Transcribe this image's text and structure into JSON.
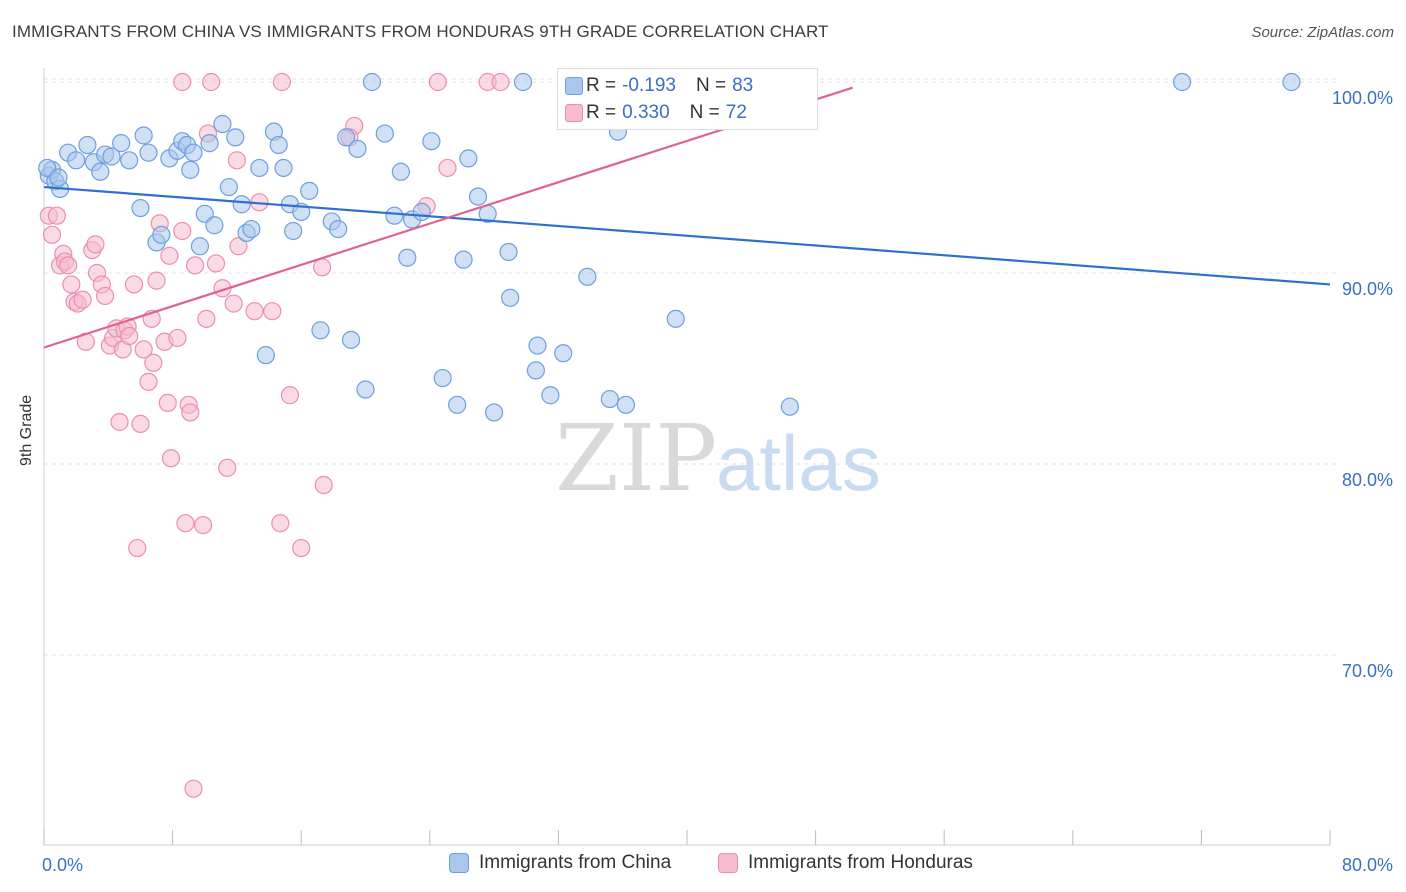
{
  "title": "IMMIGRANTS FROM CHINA VS IMMIGRANTS FROM HONDURAS 9TH GRADE CORRELATION CHART",
  "source": "Source: ZipAtlas.com",
  "watermark": {
    "zip": "ZIP",
    "atlas": "atlas"
  },
  "colors": {
    "china_fill": "#a9c6ec",
    "china_stroke": "#6f9fde",
    "china_line": "#2f6fcf",
    "honduras_fill": "#f6bccd",
    "honduras_stroke": "#ec8fab",
    "honduras_line": "#e0628e",
    "axis_text": "#3a6fc4",
    "grid": "#e3e3e3"
  },
  "stats": {
    "china": {
      "r_label": "R =",
      "r_value": "-0.193",
      "n_label": "N =",
      "n_value": "83"
    },
    "honduras": {
      "r_label": "R =",
      "r_value": "0.330",
      "n_label": "N =",
      "n_value": "72"
    }
  },
  "legend": {
    "china": "Immigrants from China",
    "honduras": "Immigrants from Honduras"
  },
  "chart_data": {
    "type": "scatter",
    "title": "IMMIGRANTS FROM CHINA VS IMMIGRANTS FROM HONDURAS 9TH GRADE CORRELATION CHART",
    "xlabel": "",
    "ylabel": "9th Grade",
    "xlim": [
      0,
      80
    ],
    "ylim": [
      62,
      101.5
    ],
    "x_tick_labels": [
      "0.0%",
      "80.0%"
    ],
    "y_ticks": [
      70,
      80,
      90,
      100
    ],
    "y_tick_labels": [
      "70.0%",
      "80.0%",
      "90.0%",
      "100.0%"
    ],
    "grid": true,
    "legend_position": "bottom",
    "series": [
      {
        "name": "Immigrants from China",
        "color": "#a9c6ec",
        "trend": {
          "x": [
            0,
            80
          ],
          "y": [
            94.5,
            89.4
          ]
        },
        "points": [
          [
            0.3,
            95.1
          ],
          [
            0.5,
            95.4
          ],
          [
            0.7,
            94.8
          ],
          [
            1.0,
            94.4
          ],
          [
            1.5,
            96.3
          ],
          [
            2.0,
            95.9
          ],
          [
            2.7,
            96.7
          ],
          [
            3.1,
            95.8
          ],
          [
            3.5,
            95.3
          ],
          [
            3.8,
            96.2
          ],
          [
            4.2,
            96.1
          ],
          [
            4.8,
            96.8
          ],
          [
            5.3,
            95.9
          ],
          [
            6.0,
            93.4
          ],
          [
            6.2,
            97.2
          ],
          [
            6.5,
            96.3
          ],
          [
            7.0,
            91.6
          ],
          [
            7.3,
            92.0
          ],
          [
            7.8,
            96.0
          ],
          [
            8.3,
            96.4
          ],
          [
            8.6,
            96.9
          ],
          [
            8.9,
            96.7
          ],
          [
            9.3,
            96.3
          ],
          [
            9.1,
            95.4
          ],
          [
            9.7,
            91.4
          ],
          [
            10.0,
            93.1
          ],
          [
            10.3,
            96.8
          ],
          [
            10.6,
            92.5
          ],
          [
            11.1,
            97.8
          ],
          [
            11.5,
            94.5
          ],
          [
            11.9,
            97.1
          ],
          [
            12.3,
            93.6
          ],
          [
            12.6,
            92.1
          ],
          [
            12.9,
            92.3
          ],
          [
            13.4,
            95.5
          ],
          [
            13.8,
            85.7
          ],
          [
            14.3,
            97.4
          ],
          [
            14.6,
            96.7
          ],
          [
            14.9,
            95.5
          ],
          [
            15.3,
            93.6
          ],
          [
            15.5,
            92.2
          ],
          [
            16.0,
            93.2
          ],
          [
            16.5,
            94.3
          ],
          [
            17.2,
            87.0
          ],
          [
            17.9,
            92.7
          ],
          [
            18.3,
            92.3
          ],
          [
            18.8,
            97.1
          ],
          [
            19.1,
            86.5
          ],
          [
            19.5,
            96.5
          ],
          [
            20.0,
            83.9
          ],
          [
            20.4,
            100.0
          ],
          [
            21.2,
            97.3
          ],
          [
            21.8,
            93.0
          ],
          [
            22.2,
            95.3
          ],
          [
            22.6,
            90.8
          ],
          [
            22.9,
            92.8
          ],
          [
            23.5,
            93.2
          ],
          [
            24.1,
            96.9
          ],
          [
            24.8,
            84.5
          ],
          [
            25.7,
            83.1
          ],
          [
            26.1,
            90.7
          ],
          [
            26.4,
            96.0
          ],
          [
            27.0,
            94.0
          ],
          [
            27.6,
            93.1
          ],
          [
            28.0,
            82.7
          ],
          [
            28.9,
            91.1
          ],
          [
            29.0,
            88.7
          ],
          [
            29.8,
            100.0
          ],
          [
            30.6,
            84.9
          ],
          [
            30.7,
            86.2
          ],
          [
            31.5,
            83.6
          ],
          [
            32.3,
            85.8
          ],
          [
            33.0,
            100.0
          ],
          [
            33.8,
            89.8
          ],
          [
            35.2,
            83.4
          ],
          [
            35.7,
            97.4
          ],
          [
            36.2,
            83.1
          ],
          [
            39.3,
            87.6
          ],
          [
            46.4,
            83.0
          ],
          [
            70.8,
            100.0
          ],
          [
            77.6,
            100.0
          ],
          [
            0.2,
            95.5
          ],
          [
            0.9,
            95.0
          ]
        ]
      },
      {
        "name": "Immigrants from Honduras",
        "color": "#f6bccd",
        "trend": {
          "x": [
            0,
            50.3
          ],
          "y": [
            86.1,
            99.7
          ]
        },
        "points": [
          [
            0.3,
            93.0
          ],
          [
            0.5,
            92.0
          ],
          [
            0.8,
            93.0
          ],
          [
            1.0,
            90.4
          ],
          [
            1.2,
            91.0
          ],
          [
            1.3,
            90.6
          ],
          [
            1.5,
            90.4
          ],
          [
            1.7,
            89.4
          ],
          [
            1.9,
            88.5
          ],
          [
            2.1,
            88.4
          ],
          [
            2.4,
            88.6
          ],
          [
            2.6,
            86.4
          ],
          [
            3.0,
            91.2
          ],
          [
            3.2,
            91.5
          ],
          [
            3.3,
            90.0
          ],
          [
            3.6,
            89.4
          ],
          [
            3.8,
            88.8
          ],
          [
            4.1,
            86.2
          ],
          [
            4.3,
            86.6
          ],
          [
            4.5,
            87.1
          ],
          [
            4.7,
            82.2
          ],
          [
            4.9,
            86.0
          ],
          [
            5.0,
            87.0
          ],
          [
            5.2,
            87.2
          ],
          [
            5.3,
            86.7
          ],
          [
            5.6,
            89.4
          ],
          [
            5.8,
            75.6
          ],
          [
            6.0,
            82.1
          ],
          [
            6.2,
            86.0
          ],
          [
            6.5,
            84.3
          ],
          [
            6.7,
            87.6
          ],
          [
            6.8,
            85.3
          ],
          [
            7.0,
            89.6
          ],
          [
            7.2,
            92.6
          ],
          [
            7.5,
            86.4
          ],
          [
            7.7,
            83.2
          ],
          [
            7.8,
            90.9
          ],
          [
            7.9,
            80.3
          ],
          [
            8.3,
            86.6
          ],
          [
            8.6,
            92.2
          ],
          [
            8.8,
            76.9
          ],
          [
            8.6,
            100.0
          ],
          [
            9.0,
            83.1
          ],
          [
            9.1,
            82.7
          ],
          [
            9.3,
            63.0
          ],
          [
            9.4,
            90.4
          ],
          [
            9.9,
            76.8
          ],
          [
            10.1,
            87.6
          ],
          [
            10.2,
            97.3
          ],
          [
            10.4,
            100.0
          ],
          [
            10.7,
            90.5
          ],
          [
            11.1,
            89.2
          ],
          [
            11.4,
            79.8
          ],
          [
            11.8,
            88.4
          ],
          [
            12.1,
            91.4
          ],
          [
            12.0,
            95.9
          ],
          [
            13.1,
            88.0
          ],
          [
            13.4,
            93.7
          ],
          [
            14.2,
            88.0
          ],
          [
            14.7,
            76.9
          ],
          [
            14.8,
            100.0
          ],
          [
            15.3,
            83.6
          ],
          [
            16.0,
            75.6
          ],
          [
            17.3,
            90.3
          ],
          [
            17.4,
            78.9
          ],
          [
            19.3,
            97.7
          ],
          [
            19.0,
            97.1
          ],
          [
            23.8,
            93.5
          ],
          [
            24.5,
            100.0
          ],
          [
            25.1,
            95.5
          ],
          [
            27.6,
            100.0
          ],
          [
            28.4,
            100.0
          ]
        ]
      }
    ]
  }
}
